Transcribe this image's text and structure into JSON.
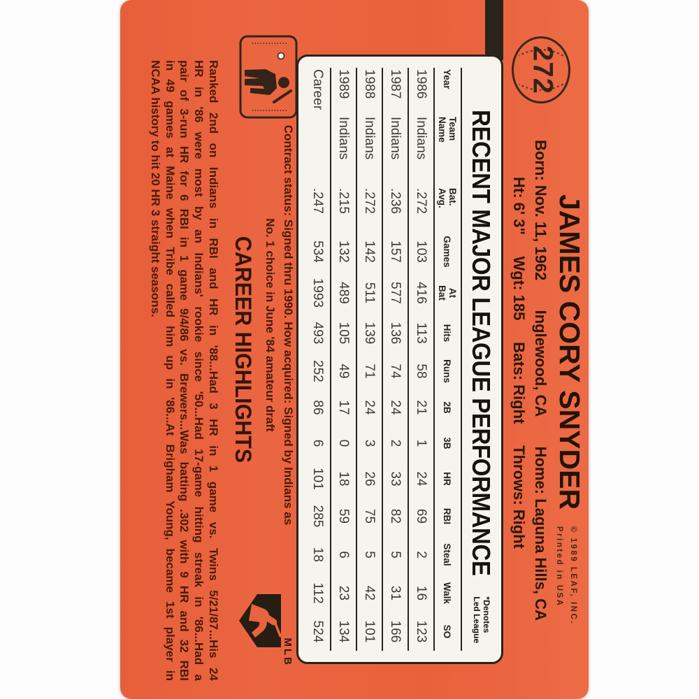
{
  "card": {
    "number": "272",
    "player_name": "JAMES CORY SNYDER",
    "bio_line1": [
      "Born: Nov. 11, 1962",
      "Inglewood, CA",
      "Home: Laguna Hills, CA"
    ],
    "bio_line2": [
      "Ht: 6' 3\"",
      "Wgt: 185",
      "Bats: Right",
      "Throws: Right"
    ],
    "fine_print": [
      "© 1989 LEAF, INC.",
      "Printed in USA"
    ],
    "colors": {
      "card_orange": "#e8613b",
      "panel_white": "#f6f4ee",
      "ink_black": "#241309",
      "ink_maroon": "#4a1a0c"
    }
  },
  "table": {
    "title": "RECENT MAJOR LEAGUE PERFORMANCE",
    "denotes_line1": "*Denotes",
    "denotes_line2": "Led League",
    "headers": [
      [
        "Year"
      ],
      [
        "Team",
        "Name"
      ],
      [
        "Bat.",
        "Avg."
      ],
      [
        "Games"
      ],
      [
        "At",
        "Bat"
      ],
      [
        "Hits"
      ],
      [
        "Runs"
      ],
      [
        "2B"
      ],
      [
        "3B"
      ],
      [
        "HR"
      ],
      [
        "RBI"
      ],
      [
        "Steal"
      ],
      [
        "Walk"
      ],
      [
        "SO"
      ]
    ],
    "rows": [
      [
        "1986",
        "Indians",
        ".272",
        "103",
        "416",
        "113",
        "58",
        "21",
        "1",
        "24",
        "69",
        "2",
        "16",
        "123"
      ],
      [
        "1987",
        "Indians",
        ".236",
        "157",
        "577",
        "136",
        "74",
        "24",
        "2",
        "33",
        "82",
        "5",
        "31",
        "166"
      ],
      [
        "1988",
        "Indians",
        ".272",
        "142",
        "511",
        "139",
        "71",
        "24",
        "3",
        "26",
        "75",
        "5",
        "42",
        "101"
      ],
      [
        "1989",
        "Indians",
        ".215",
        "132",
        "489",
        "105",
        "49",
        "17",
        "0",
        "18",
        "59",
        "6",
        "23",
        "134"
      ],
      [
        "Career",
        "",
        ".247",
        "534",
        "1993",
        "493",
        "252",
        "86",
        "6",
        "101",
        "285",
        "18",
        "112",
        "524"
      ]
    ]
  },
  "contract": {
    "line1": "Contract status: Signed thru 1990. How acquired: Signed by Indians as",
    "line2": "No. 1 choice in June '84 amateur draft"
  },
  "career": {
    "title": "CAREER HIGHLIGHTS",
    "lines": [
      "Ranked 2nd on Indians in RBI and HR in '88...Had 3 HR in 1 game vs. Twins 5/21/87...His 24",
      "HR in '86 were most by an Indians' rookie since '50...Had 17-game hitting streak in '86...Had a",
      "pair of 3-run HR for 6 RBI in 1 game 9/4/86 vs. Brewers...Was batting .302 with 9 HR and 32 RBI",
      "in 49 games at Maine when Tribe called him up in '86...At Brigham Young, became 1st player in",
      "NCAA history to hit 20 HR 3 straight seasons."
    ]
  },
  "logos": {
    "mlb_label": "MLB"
  }
}
